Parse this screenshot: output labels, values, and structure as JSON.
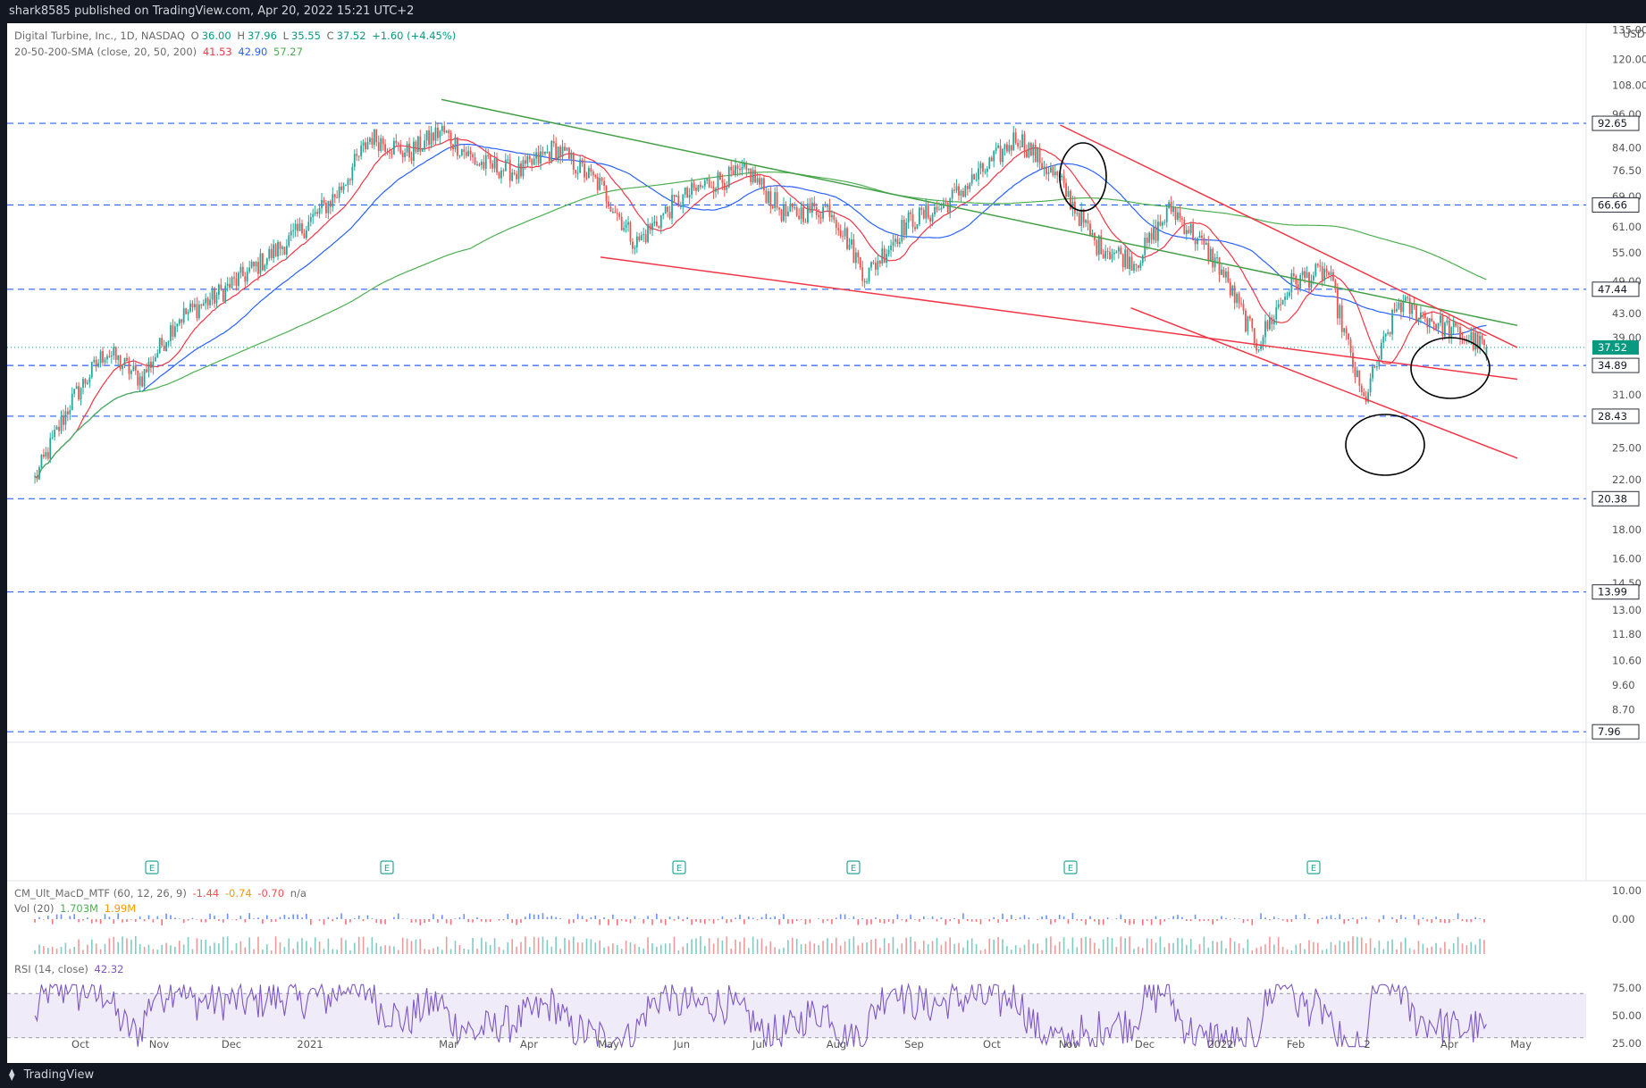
{
  "header": {
    "publisher_text": "shark8585 published on TradingView.com, Apr 20, 2022 15:21 UTC+2"
  },
  "legend": {
    "symbol": "Digital Turbine, Inc., 1D, NASDAQ",
    "o_label": "O",
    "o": "36.00",
    "h_label": "H",
    "h": "37.96",
    "l_label": "L",
    "l": "35.55",
    "c_label": "C",
    "c": "37.52",
    "change": "+1.60 (+4.45%)",
    "sma_label": "20-50-200-SMA (close, 20, 50, 200)",
    "sma20": "41.53",
    "sma50": "42.90",
    "sma200": "57.27",
    "macd_label": "CM_Ult_MacD_MTF (60, 12, 26, 9)",
    "macd1": "-1.44",
    "macd2": "-0.74",
    "macd3": "-0.70",
    "macd4": "n/a",
    "vol_label": "Vol (20)",
    "vol1": "1.703M",
    "vol2": "1.99M",
    "rsi_label": "RSI (14, close)",
    "rsi": "42.32"
  },
  "footer": {
    "brand": "TradingView",
    "brand_icon": "tradingview-logo-icon"
  },
  "colors": {
    "background": "#ffffff",
    "up": "#26a69a",
    "down": "#ef5350",
    "sma20": "#f23645",
    "sma50": "#2962ff",
    "sma200": "#4caf50",
    "hline": "#2962ff",
    "green_trend": "#43a047",
    "red_trend": "#f23645",
    "rsi": "#7e57c2"
  },
  "chart_data": [
    {
      "type": "line",
      "subtype": "candlestick",
      "title": "Digital Turbine, Inc., 1D, NASDAQ",
      "y_scale": "log",
      "y_unit_label": "USD",
      "y_ticks": [
        "135.00",
        "120.00",
        "108.00",
        "96.00",
        "84.00",
        "76.50",
        "69.00",
        "61.00",
        "55.00",
        "49.00",
        "43.00",
        "39.00",
        "31.00",
        "25.00",
        "22.00",
        "18.00",
        "16.00",
        "14.50",
        "13.00",
        "11.80",
        "10.60",
        "9.60",
        "8.70"
      ],
      "x_ticks": [
        "Oct",
        "Nov",
        "Dec",
        "2021",
        "Mar",
        "Apr",
        "May",
        "Jun",
        "Jul",
        "Aug",
        "Sep",
        "Oct",
        "Nov",
        "Dec",
        "2022",
        "Feb",
        "2",
        "Apr",
        "May"
      ],
      "price_levels": [
        92.65,
        66.66,
        47.44,
        34.89,
        28.43,
        20.38,
        13.99,
        7.96
      ],
      "price_level_labels": [
        "92.65",
        "66.66",
        "47.44",
        "34.89",
        "28.43",
        "20.38",
        "13.99",
        "7.96"
      ],
      "last_price": 37.52,
      "last_price_label": "37.52",
      "ohlc": {
        "open": 36.0,
        "high": 37.96,
        "low": 35.55,
        "close": 37.52
      },
      "close_series_approx": {
        "dates": [
          "2020-09-21",
          "2020-10-05",
          "2020-10-19",
          "2020-11-02",
          "2020-11-16",
          "2020-12-01",
          "2020-12-15",
          "2021-01-04",
          "2021-01-19",
          "2021-02-01",
          "2021-02-16",
          "2021-03-01",
          "2021-03-15",
          "2021-04-01",
          "2021-04-15",
          "2021-05-03",
          "2021-05-17",
          "2021-06-01",
          "2021-06-15",
          "2021-07-01",
          "2021-07-15",
          "2021-08-02",
          "2021-08-16",
          "2021-09-01",
          "2021-09-15",
          "2021-10-01",
          "2021-10-15",
          "2021-11-01",
          "2021-11-15",
          "2021-12-01",
          "2021-12-15",
          "2022-01-03",
          "2022-01-18",
          "2022-02-01",
          "2022-02-15",
          "2022-03-01",
          "2022-03-15",
          "2022-04-01",
          "2022-04-19"
        ],
        "close": [
          22,
          30,
          37,
          33,
          42,
          46,
          51,
          60,
          70,
          88,
          82,
          90,
          79,
          76,
          84,
          72,
          57,
          67,
          73,
          76,
          64,
          66,
          50,
          62,
          66,
          76,
          88,
          73,
          57,
          53,
          66,
          52,
          38,
          49,
          51,
          30,
          45,
          41,
          37.5
        ]
      },
      "sma20_last": 41.53,
      "sma50_last": 42.9,
      "sma200_last": 57.27,
      "earnings_markers": [
        "E",
        "E",
        "E",
        "E",
        "E",
        "E"
      ],
      "trendlines": [
        {
          "color": "green",
          "from": [
            "2021-03-01",
            102
          ],
          "to": [
            "2022-05-01",
            41
          ]
        },
        {
          "color": "red",
          "from": [
            "2021-05-03",
            54
          ],
          "to": [
            "2022-05-01",
            33
          ]
        },
        {
          "color": "red",
          "from": [
            "2021-11-01",
            92
          ],
          "to": [
            "2022-05-01",
            37.5
          ]
        },
        {
          "color": "red",
          "from": [
            "2021-11-29",
            44
          ],
          "to": [
            "2022-05-01",
            24
          ]
        }
      ],
      "annotation_circles": 3
    },
    {
      "type": "bar",
      "title": "CM_Ult_MacD_MTF (60, 12, 26, 9) / Vol (20)",
      "y_ticks": [
        "10.00",
        "0.00"
      ]
    },
    {
      "type": "line",
      "title": "RSI (14, close)",
      "y_ticks": [
        "75.00",
        "50.00",
        "25.00"
      ],
      "last_value": 42.32,
      "band": [
        30,
        70
      ]
    }
  ]
}
